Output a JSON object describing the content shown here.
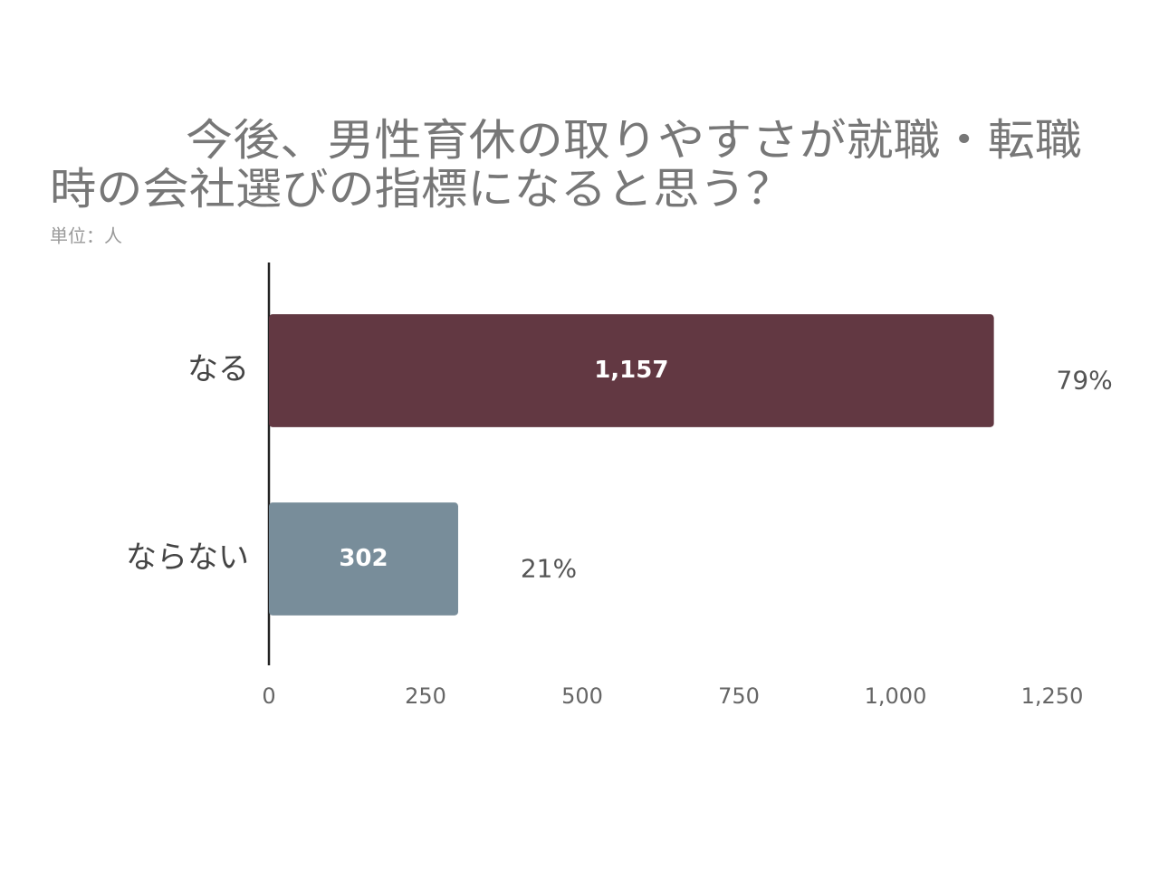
{
  "chart_data": {
    "type": "hbar",
    "title": [
      "今後、男性育休の取りやすさが就職・転職",
      "時の会社選びの指標になると思う？"
    ],
    "subtitle": "単位：人",
    "categories": [
      "なる",
      "ならない"
    ],
    "values": [
      1157,
      302
    ],
    "value_labels": [
      "1,157",
      "302"
    ],
    "annotations": [
      "79%",
      "21%"
    ],
    "colors": [
      "#623842",
      "#788d9a"
    ],
    "xlim": [
      0,
      1250
    ],
    "xticks": [
      0,
      250,
      500,
      750,
      {
        "value": 1000,
        "label": "1,000"
      },
      {
        "value": 1250,
        "label": "1,250"
      }
    ],
    "grid": false
  }
}
